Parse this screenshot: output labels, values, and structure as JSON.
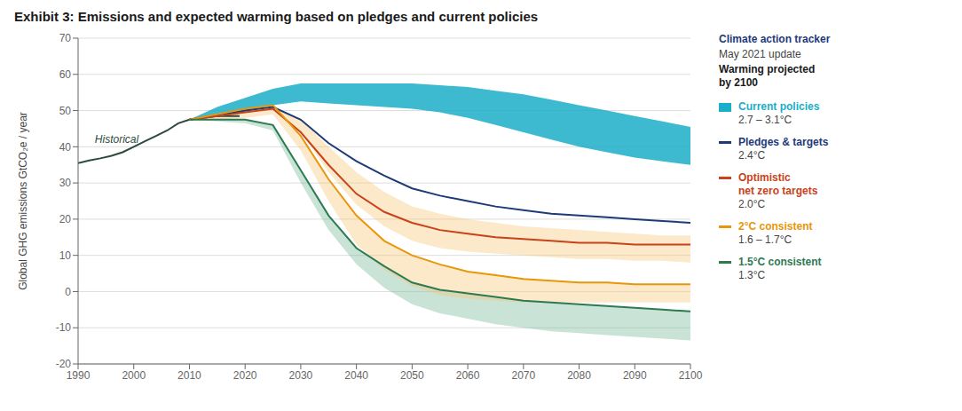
{
  "chart_data": {
    "type": "line",
    "title": "Exhibit 3: Emissions and expected warming based on pledges and current policies",
    "ylabel": "Global GHG emissions GtCO₂e / year",
    "xlim": [
      1990,
      2100
    ],
    "ylim": [
      -20,
      70
    ],
    "xticks": [
      1990,
      2000,
      2010,
      2020,
      2030,
      2040,
      2050,
      2060,
      2070,
      2080,
      2090,
      2100
    ],
    "yticks": [
      -20,
      -10,
      0,
      10,
      20,
      30,
      40,
      50,
      60,
      70
    ],
    "grid": true,
    "legend": "right",
    "annotations": [
      {
        "text": "Historical",
        "x": 1993,
        "y": 42.0,
        "color": "#2d4a3a"
      },
      {
        "text": "Climate action tracker",
        "color": "#1e3a78"
      },
      {
        "text": "May 2021 update",
        "color": "#444444"
      },
      {
        "text": "Warming projected\nby 2100",
        "color": "#1a1a1a"
      }
    ],
    "series": [
      {
        "type": "band",
        "color": "#7ab89a",
        "x": [
          2010,
          2015,
          2020,
          2025,
          2030,
          2035,
          2040,
          2045,
          2050,
          2055,
          2060,
          2065,
          2070,
          2075,
          2080,
          2085,
          2090,
          2095,
          2100
        ],
        "upper": [
          47.5,
          47.5,
          47.5,
          46.0,
          33.5,
          21.0,
          12.0,
          7.0,
          2.5,
          0.5,
          -0.5,
          -1.5,
          -2.5,
          -3.0,
          -3.5,
          -4.0,
          -4.5,
          -5.0,
          -5.5
        ],
        "lower": [
          47.5,
          47.0,
          46.5,
          44.5,
          30.0,
          17.0,
          7.5,
          1.0,
          -3.5,
          -6.0,
          -7.5,
          -9.0,
          -10.0,
          -11.0,
          -11.5,
          -12.0,
          -12.5,
          -13.0,
          -13.5
        ]
      },
      {
        "type": "band",
        "color": "#f5c878",
        "x": [
          2010,
          2015,
          2020,
          2025,
          2030,
          2035,
          2040,
          2045,
          2050,
          2055,
          2060,
          2065,
          2070,
          2075,
          2080,
          2085,
          2090,
          2095,
          2100
        ],
        "upper": [
          47.5,
          49.0,
          50.5,
          51.5,
          43.0,
          31.0,
          21.0,
          14.0,
          10.0,
          7.5,
          5.5,
          4.5,
          3.5,
          3.0,
          2.5,
          2.5,
          2.0,
          2.0,
          2.0
        ],
        "lower": [
          47.5,
          47.5,
          48.0,
          49.0,
          39.0,
          25.0,
          13.0,
          6.0,
          1.5,
          -1.0,
          -2.0,
          -2.5,
          -3.0,
          -3.0,
          -3.0,
          -3.0,
          -3.0,
          -3.0,
          -3.0
        ]
      },
      {
        "type": "band",
        "color": "#f5c878",
        "x": [
          2010,
          2015,
          2020,
          2025,
          2030,
          2035,
          2040,
          2045,
          2050,
          2055,
          2060,
          2065,
          2070,
          2075,
          2080,
          2085,
          2090,
          2095,
          2100
        ],
        "upper": [
          47.5,
          48.5,
          50.0,
          51.0,
          47.5,
          40.0,
          33.0,
          27.5,
          23.5,
          21.5,
          20.0,
          19.0,
          18.0,
          17.5,
          17.0,
          16.5,
          16.0,
          15.5,
          15.5
        ],
        "lower": [
          47.5,
          48.5,
          49.5,
          50.5,
          44.0,
          33.0,
          24.0,
          18.0,
          14.0,
          12.0,
          11.0,
          10.5,
          10.0,
          9.5,
          9.0,
          9.0,
          8.5,
          8.5,
          8.0
        ]
      },
      {
        "type": "band",
        "name": "Current policies",
        "annotation": "2.7 – 3.1°C",
        "color": "#1baec8",
        "x": [
          2010,
          2015,
          2020,
          2025,
          2030,
          2035,
          2040,
          2045,
          2050,
          2055,
          2060,
          2065,
          2070,
          2075,
          2080,
          2085,
          2090,
          2095,
          2100
        ],
        "upper": [
          47.5,
          51.0,
          53.5,
          56.0,
          57.5,
          57.5,
          57.5,
          57.5,
          57.5,
          57.0,
          56.5,
          55.5,
          54.5,
          53.0,
          51.5,
          50.0,
          48.5,
          47.0,
          45.5
        ],
        "lower": [
          47.5,
          48.5,
          49.5,
          51.5,
          52.5,
          52.0,
          51.5,
          51.0,
          50.5,
          49.5,
          48.0,
          46.0,
          44.0,
          42.0,
          40.0,
          38.5,
          37.0,
          36.0,
          35.0
        ]
      },
      {
        "type": "line",
        "color": "#2d4a3a",
        "x": [
          1990,
          1992,
          1994,
          1996,
          1998,
          2000,
          2002,
          2004,
          2006,
          2008,
          2010,
          2012,
          2014,
          2016,
          2018,
          2019
        ],
        "values": [
          35.5,
          36.2,
          36.8,
          37.5,
          38.5,
          40.0,
          41.5,
          43.0,
          44.5,
          46.5,
          47.5,
          48.0,
          48.5,
          48.5,
          48.5,
          48.5
        ]
      },
      {
        "type": "line",
        "name": "Pledges & targets",
        "annotation": "2.4°C",
        "color": "#1e3a78",
        "x": [
          2010,
          2015,
          2020,
          2025,
          2030,
          2035,
          2040,
          2045,
          2050,
          2055,
          2060,
          2065,
          2070,
          2075,
          2080,
          2085,
          2090,
          2095,
          2100
        ],
        "values": [
          47.5,
          48.5,
          50.0,
          51.0,
          47.5,
          41.0,
          36.0,
          32.0,
          28.5,
          26.5,
          25.0,
          23.5,
          22.5,
          21.5,
          21.0,
          20.5,
          20.0,
          19.5,
          19.0
        ]
      },
      {
        "type": "line",
        "name": "Optimistic\nnet zero targets",
        "annotation": "2.0°C",
        "color": "#c8421a",
        "x": [
          2010,
          2015,
          2020,
          2025,
          2030,
          2035,
          2040,
          2045,
          2050,
          2055,
          2060,
          2065,
          2070,
          2075,
          2080,
          2085,
          2090,
          2095,
          2100
        ],
        "values": [
          47.5,
          48.5,
          49.5,
          50.5,
          44.0,
          35.0,
          27.0,
          22.0,
          19.0,
          17.0,
          16.0,
          15.0,
          14.5,
          14.0,
          13.5,
          13.5,
          13.0,
          13.0,
          13.0
        ]
      },
      {
        "type": "line",
        "name": "2°C consistent",
        "annotation": "1.6 – 1.7°C",
        "color": "#e8960a",
        "x": [
          2010,
          2015,
          2020,
          2025,
          2030,
          2035,
          2040,
          2045,
          2050,
          2055,
          2060,
          2065,
          2070,
          2075,
          2080,
          2085,
          2090,
          2095,
          2100
        ],
        "values": [
          47.5,
          49.0,
          50.5,
          51.5,
          43.0,
          31.0,
          21.0,
          14.0,
          10.0,
          7.5,
          5.5,
          4.5,
          3.5,
          3.0,
          2.5,
          2.5,
          2.0,
          2.0,
          2.0
        ]
      },
      {
        "type": "line",
        "name": "1.5°C consistent",
        "annotation": "1.3°C",
        "color": "#2d7a52",
        "x": [
          2010,
          2015,
          2020,
          2025,
          2030,
          2035,
          2040,
          2045,
          2050,
          2055,
          2060,
          2065,
          2070,
          2075,
          2080,
          2085,
          2090,
          2095,
          2100
        ],
        "values": [
          47.5,
          47.5,
          47.5,
          46.0,
          33.5,
          21.0,
          12.0,
          7.0,
          2.5,
          0.5,
          -0.5,
          -1.5,
          -2.5,
          -3.0,
          -3.5,
          -4.0,
          -4.5,
          -5.0,
          -5.5
        ]
      }
    ]
  }
}
